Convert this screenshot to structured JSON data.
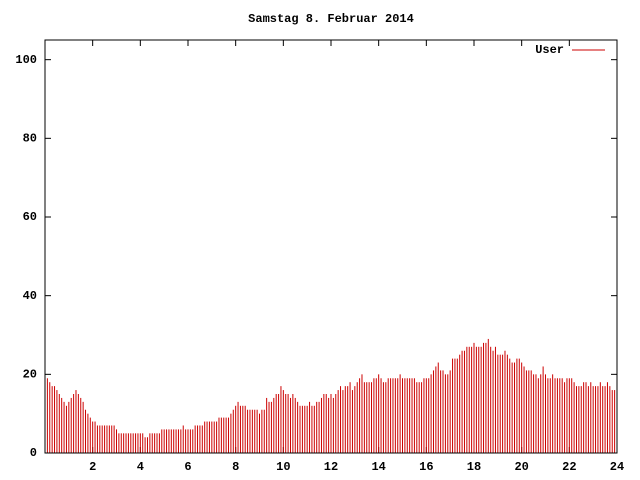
{
  "chart_data": {
    "type": "impulse",
    "title": "Samstag 8. Februar 2014",
    "legend": "top-right",
    "xlim": [
      0,
      24
    ],
    "ylim": [
      0,
      105
    ],
    "xticks": [
      2,
      4,
      6,
      8,
      10,
      12,
      14,
      16,
      18,
      20,
      22,
      24
    ],
    "yticks": [
      0,
      20,
      40,
      60,
      80,
      100
    ],
    "grid": false,
    "x": [
      0,
      0.1,
      0.2,
      0.3,
      0.4,
      0.5,
      0.6,
      0.7,
      0.8,
      0.9,
      1,
      1.1,
      1.2,
      1.3,
      1.4,
      1.5,
      1.6,
      1.7,
      1.8,
      1.9,
      2,
      2.1,
      2.2,
      2.3,
      2.4,
      2.5,
      2.6,
      2.7,
      2.8,
      2.9,
      3,
      3.1,
      3.2,
      3.3,
      3.4,
      3.5,
      3.6,
      3.7,
      3.8,
      3.9,
      4,
      4.1,
      4.2,
      4.3,
      4.4,
      4.5,
      4.6,
      4.7,
      4.8,
      4.9,
      5,
      5.1,
      5.2,
      5.3,
      5.4,
      5.5,
      5.6,
      5.7,
      5.8,
      5.9,
      6,
      6.1,
      6.2,
      6.3,
      6.4,
      6.5,
      6.6,
      6.7,
      6.8,
      6.9,
      7,
      7.1,
      7.2,
      7.3,
      7.4,
      7.5,
      7.6,
      7.7,
      7.8,
      7.9,
      8,
      8.1,
      8.2,
      8.3,
      8.4,
      8.5,
      8.6,
      8.7,
      8.8,
      8.9,
      9,
      9.1,
      9.2,
      9.3,
      9.4,
      9.5,
      9.6,
      9.7,
      9.8,
      9.9,
      10,
      10.1,
      10.2,
      10.3,
      10.4,
      10.5,
      10.6,
      10.7,
      10.8,
      10.9,
      11,
      11.1,
      11.2,
      11.3,
      11.4,
      11.5,
      11.6,
      11.7,
      11.8,
      11.9,
      12,
      12.1,
      12.2,
      12.3,
      12.4,
      12.5,
      12.6,
      12.7,
      12.8,
      12.9,
      13,
      13.1,
      13.2,
      13.3,
      13.4,
      13.5,
      13.6,
      13.7,
      13.8,
      13.9,
      14,
      14.1,
      14.2,
      14.3,
      14.4,
      14.5,
      14.6,
      14.7,
      14.8,
      14.9,
      15,
      15.1,
      15.2,
      15.3,
      15.4,
      15.5,
      15.6,
      15.7,
      15.8,
      15.9,
      16,
      16.1,
      16.2,
      16.3,
      16.4,
      16.5,
      16.6,
      16.7,
      16.8,
      16.9,
      17,
      17.1,
      17.2,
      17.3,
      17.4,
      17.5,
      17.6,
      17.7,
      17.8,
      17.9,
      18,
      18.1,
      18.2,
      18.3,
      18.4,
      18.5,
      18.6,
      18.7,
      18.8,
      18.9,
      19,
      19.1,
      19.2,
      19.3,
      19.4,
      19.5,
      19.6,
      19.7,
      19.8,
      19.9,
      20,
      20.1,
      20.2,
      20.3,
      20.4,
      20.5,
      20.6,
      20.7,
      20.8,
      20.9,
      21,
      21.1,
      21.2,
      21.3,
      21.4,
      21.5,
      21.6,
      21.7,
      21.8,
      21.9,
      22,
      22.1,
      22.2,
      22.3,
      22.4,
      22.5,
      22.6,
      22.7,
      22.8,
      22.9,
      23,
      23.1,
      23.2,
      23.3,
      23.4,
      23.5,
      23.6,
      23.7,
      23.8,
      23.9
    ],
    "series": [
      {
        "name": "User",
        "color": "#cc0000",
        "values": [
          19,
          19,
          18,
          17,
          17,
          16,
          15,
          14,
          13,
          12,
          13,
          14,
          15,
          16,
          15,
          14,
          13,
          11,
          10,
          9,
          8,
          8,
          7,
          7,
          7,
          7,
          7,
          7,
          7,
          7,
          6,
          5,
          5,
          5,
          5,
          5,
          5,
          5,
          5,
          5,
          5,
          5,
          4,
          4,
          5,
          5,
          5,
          5,
          5,
          6,
          6,
          6,
          6,
          6,
          6,
          6,
          6,
          6,
          7,
          6,
          6,
          6,
          6,
          7,
          7,
          7,
          7,
          8,
          8,
          8,
          8,
          8,
          8,
          9,
          9,
          9,
          9,
          9,
          10,
          11,
          12,
          13,
          12,
          12,
          12,
          11,
          11,
          11,
          11,
          11,
          10,
          11,
          11,
          14,
          13,
          13,
          14,
          15,
          15,
          17,
          16,
          15,
          15,
          14,
          15,
          14,
          13,
          12,
          12,
          12,
          12,
          13,
          12,
          12,
          13,
          13,
          14,
          15,
          15,
          14,
          15,
          14,
          15,
          16,
          17,
          16,
          17,
          17,
          18,
          16,
          17,
          18,
          19,
          20,
          18,
          18,
          18,
          18,
          19,
          19,
          20,
          19,
          18,
          18,
          19,
          19,
          19,
          19,
          19,
          20,
          19,
          19,
          19,
          19,
          19,
          19,
          18,
          18,
          18,
          19,
          19,
          19,
          20,
          21,
          22,
          23,
          21,
          21,
          20,
          20,
          21,
          24,
          24,
          24,
          25,
          26,
          26,
          27,
          27,
          27,
          28,
          27,
          27,
          27,
          28,
          28,
          29,
          27,
          26,
          27,
          25,
          25,
          25,
          26,
          25,
          24,
          23,
          23,
          24,
          24,
          23,
          22,
          21,
          21,
          21,
          20,
          20,
          19,
          20,
          22,
          20,
          19,
          19,
          20,
          19,
          19,
          19,
          19,
          18,
          19,
          19,
          19,
          18,
          17,
          17,
          17,
          18,
          18,
          17,
          18,
          17,
          17,
          17,
          18,
          17,
          17,
          18,
          17,
          16,
          16
        ]
      }
    ]
  }
}
